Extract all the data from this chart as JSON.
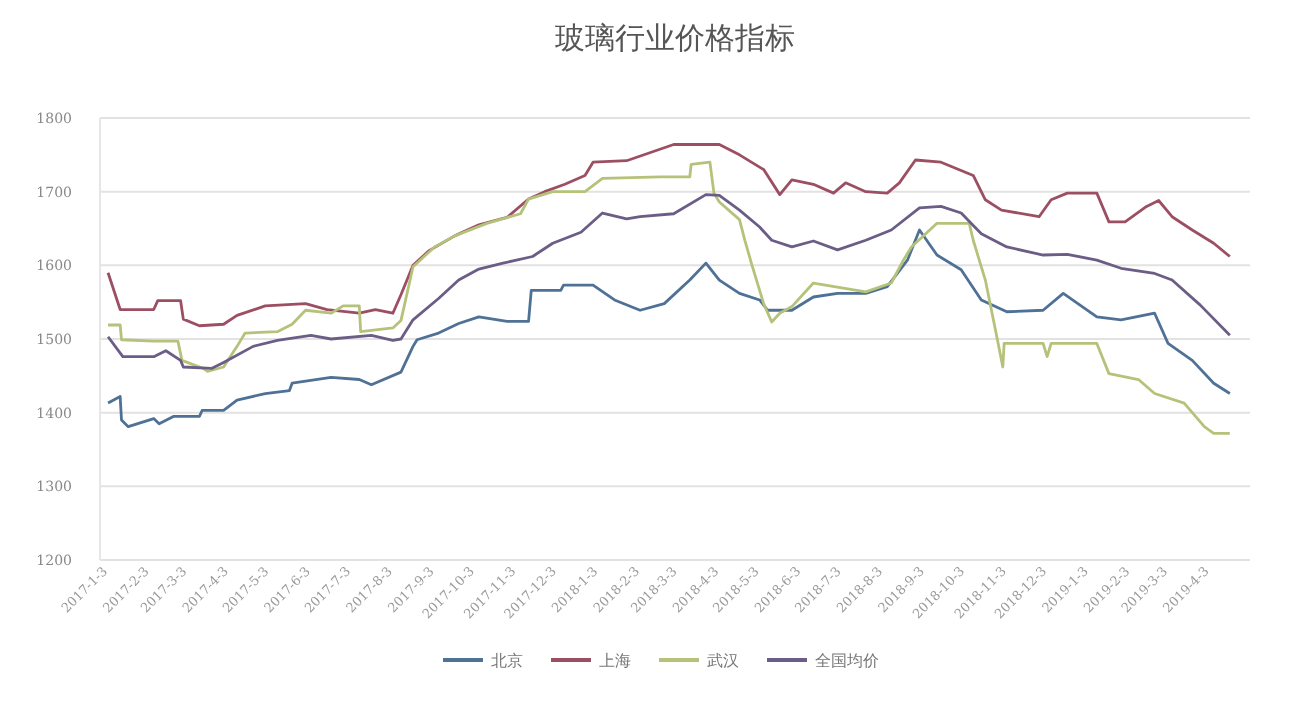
{
  "chart_data": {
    "type": "line",
    "title": "玻璃行业价格指标",
    "xlim": [
      "2016-12-28",
      "2019-05-03"
    ],
    "ylim": [
      1200,
      1800
    ],
    "yticks": [
      1200,
      1300,
      1400,
      1500,
      1600,
      1700,
      1800
    ],
    "xticks": [
      {
        "value": "2017-01-03",
        "label": "2017-1-3"
      },
      {
        "value": "2017-02-03",
        "label": "2017-2-3"
      },
      {
        "value": "2017-03-03",
        "label": "2017-3-3"
      },
      {
        "value": "2017-04-03",
        "label": "2017-4-3"
      },
      {
        "value": "2017-05-03",
        "label": "2017-5-3"
      },
      {
        "value": "2017-06-03",
        "label": "2017-6-3"
      },
      {
        "value": "2017-07-03",
        "label": "2017-7-3"
      },
      {
        "value": "2017-08-03",
        "label": "2017-8-3"
      },
      {
        "value": "2017-09-03",
        "label": "2017-9-3"
      },
      {
        "value": "2017-10-03",
        "label": "2017-10-3"
      },
      {
        "value": "2017-11-03",
        "label": "2017-11-3"
      },
      {
        "value": "2017-12-03",
        "label": "2017-12-3"
      },
      {
        "value": "2018-01-03",
        "label": "2018-1-3"
      },
      {
        "value": "2018-02-03",
        "label": "2018-2-3"
      },
      {
        "value": "2018-03-03",
        "label": "2018-3-3"
      },
      {
        "value": "2018-04-03",
        "label": "2018-4-3"
      },
      {
        "value": "2018-05-03",
        "label": "2018-5-3"
      },
      {
        "value": "2018-06-03",
        "label": "2018-6-3"
      },
      {
        "value": "2018-07-03",
        "label": "2018-7-3"
      },
      {
        "value": "2018-08-03",
        "label": "2018-8-3"
      },
      {
        "value": "2018-09-03",
        "label": "2018-9-3"
      },
      {
        "value": "2018-10-03",
        "label": "2018-10-3"
      },
      {
        "value": "2018-11-03",
        "label": "2018-11-3"
      },
      {
        "value": "2018-12-03",
        "label": "2018-12-3"
      },
      {
        "value": "2019-01-03",
        "label": "2019-1-3"
      },
      {
        "value": "2019-02-03",
        "label": "2019-2-3"
      },
      {
        "value": "2019-03-03",
        "label": "2019-3-3"
      },
      {
        "value": "2019-04-03",
        "label": "2019-4-3"
      }
    ],
    "grid": "y",
    "legend": "bottom",
    "series": [
      {
        "name": "北京",
        "color": "#4f7196",
        "x": [
          "2017-01-03",
          "2017-01-12",
          "2017-01-13",
          "2017-01-18",
          "2017-02-06",
          "2017-02-10",
          "2017-02-21",
          "2017-03-12",
          "2017-03-14",
          "2017-03-30",
          "2017-04-09",
          "2017-04-30",
          "2017-05-18",
          "2017-05-20",
          "2017-06-18",
          "2017-07-09",
          "2017-07-18",
          "2017-08-09",
          "2017-08-18",
          "2017-08-21",
          "2017-09-06",
          "2017-09-21",
          "2017-10-06",
          "2017-10-27",
          "2017-11-12",
          "2017-11-14",
          "2017-12-06",
          "2017-12-08",
          "2017-12-30",
          "2018-01-15",
          "2018-02-03",
          "2018-02-21",
          "2018-03-12",
          "2018-03-24",
          "2018-04-03",
          "2018-04-18",
          "2018-05-03",
          "2018-05-09",
          "2018-05-27",
          "2018-06-12",
          "2018-06-30",
          "2018-07-21",
          "2018-08-06",
          "2018-08-21",
          "2018-08-30",
          "2018-09-12",
          "2018-09-30",
          "2018-10-15",
          "2018-11-03",
          "2018-11-30",
          "2018-12-15",
          "2019-01-09",
          "2019-01-27",
          "2019-02-21",
          "2019-03-03",
          "2019-03-21",
          "2019-04-06",
          "2019-04-18"
        ],
        "values": [
          1413,
          1422,
          1390,
          1381,
          1392,
          1385,
          1395,
          1395,
          1403,
          1403,
          1417,
          1426,
          1430,
          1440,
          1448,
          1445,
          1438,
          1455,
          1490,
          1499,
          1508,
          1521,
          1530,
          1524,
          1524,
          1566,
          1566,
          1573,
          1573,
          1553,
          1539,
          1548,
          1580,
          1603,
          1580,
          1562,
          1553,
          1539,
          1539,
          1557,
          1562,
          1562,
          1571,
          1607,
          1648,
          1614,
          1594,
          1553,
          1537,
          1539,
          1562,
          1530,
          1526,
          1535,
          1494,
          1471,
          1440,
          1426
        ]
      },
      {
        "name": "上海",
        "color": "#9c4f63",
        "x": [
          "2017-01-03",
          "2017-01-12",
          "2017-02-06",
          "2017-02-09",
          "2017-02-26",
          "2017-02-28",
          "2017-03-12",
          "2017-03-30",
          "2017-04-09",
          "2017-04-30",
          "2017-05-30",
          "2017-06-15",
          "2017-07-09",
          "2017-07-21",
          "2017-08-03",
          "2017-08-09",
          "2017-08-18",
          "2017-08-30",
          "2017-09-18",
          "2017-10-06",
          "2017-10-27",
          "2017-11-12",
          "2017-11-24",
          "2017-12-09",
          "2017-12-24",
          "2017-12-30",
          "2018-01-24",
          "2018-02-28",
          "2018-04-03",
          "2018-04-18",
          "2018-05-06",
          "2018-05-18",
          "2018-05-27",
          "2018-06-12",
          "2018-06-27",
          "2018-07-06",
          "2018-07-21",
          "2018-08-06",
          "2018-08-15",
          "2018-08-27",
          "2018-09-15",
          "2018-10-09",
          "2018-10-18",
          "2018-10-30",
          "2018-11-27",
          "2018-12-06",
          "2018-12-18",
          "2019-01-09",
          "2019-01-18",
          "2019-01-30",
          "2019-02-15",
          "2019-02-24",
          "2019-03-06",
          "2019-03-21",
          "2019-04-06",
          "2019-04-18"
        ],
        "values": [
          1590,
          1540,
          1540,
          1552,
          1552,
          1527,
          1518,
          1520,
          1532,
          1545,
          1548,
          1540,
          1535,
          1540,
          1535,
          1560,
          1600,
          1620,
          1640,
          1655,
          1665,
          1690,
          1700,
          1710,
          1722,
          1740,
          1742,
          1764,
          1764,
          1750,
          1730,
          1696,
          1716,
          1710,
          1698,
          1712,
          1700,
          1698,
          1712,
          1743,
          1740,
          1722,
          1689,
          1675,
          1666,
          1689,
          1698,
          1698,
          1659,
          1659,
          1680,
          1688,
          1666,
          1648,
          1630,
          1612
        ]
      },
      {
        "name": "武汉",
        "color": "#b5c27a",
        "x": [
          "2017-01-03",
          "2017-01-12",
          "2017-01-13",
          "2017-02-06",
          "2017-02-24",
          "2017-02-27",
          "2017-03-15",
          "2017-03-18",
          "2017-03-30",
          "2017-04-09",
          "2017-04-15",
          "2017-05-09",
          "2017-05-20",
          "2017-05-30",
          "2017-06-18",
          "2017-06-27",
          "2017-07-09",
          "2017-07-10",
          "2017-08-03",
          "2017-08-09",
          "2017-08-18",
          "2017-09-03",
          "2017-09-18",
          "2017-10-12",
          "2017-11-06",
          "2017-11-12",
          "2017-11-30",
          "2017-12-24",
          "2018-01-06",
          "2018-02-18",
          "2018-03-12",
          "2018-03-13",
          "2018-03-27",
          "2018-03-30",
          "2018-04-03",
          "2018-04-18",
          "2018-04-22",
          "2018-04-27",
          "2018-05-06",
          "2018-05-12",
          "2018-05-18",
          "2018-05-27",
          "2018-06-12",
          "2018-07-21",
          "2018-08-09",
          "2018-08-18",
          "2018-08-24",
          "2018-09-12",
          "2018-10-06",
          "2018-10-09",
          "2018-10-18",
          "2018-10-27",
          "2018-10-31",
          "2018-11-01",
          "2018-11-30",
          "2018-12-03",
          "2018-12-06",
          "2019-01-09",
          "2019-01-18",
          "2019-02-09",
          "2019-02-21",
          "2019-03-15",
          "2019-03-30",
          "2019-04-06",
          "2019-04-18"
        ],
        "values": [
          1519,
          1519,
          1499,
          1497,
          1497,
          1471,
          1460,
          1456,
          1462,
          1490,
          1508,
          1510,
          1520,
          1539,
          1535,
          1545,
          1545,
          1510,
          1515,
          1525,
          1598,
          1625,
          1640,
          1657,
          1670,
          1690,
          1700,
          1700,
          1718,
          1720,
          1720,
          1737,
          1740,
          1698,
          1686,
          1662,
          1634,
          1602,
          1548,
          1523,
          1535,
          1544,
          1576,
          1564,
          1576,
          1607,
          1625,
          1657,
          1657,
          1634,
          1580,
          1499,
          1462,
          1494,
          1494,
          1476,
          1494,
          1494,
          1453,
          1445,
          1426,
          1413,
          1381,
          1372,
          1372
        ]
      },
      {
        "name": "全国均价",
        "color": "#6b5d86",
        "x": [
          "2017-01-03",
          "2017-01-14",
          "2017-02-06",
          "2017-02-15",
          "2017-02-26",
          "2017-02-28",
          "2017-03-21",
          "2017-03-30",
          "2017-04-21",
          "2017-05-09",
          "2017-06-03",
          "2017-06-18",
          "2017-07-18",
          "2017-08-03",
          "2017-08-09",
          "2017-08-18",
          "2017-09-06",
          "2017-09-21",
          "2017-10-06",
          "2017-10-24",
          "2017-11-15",
          "2017-11-30",
          "2017-12-21",
          "2018-01-06",
          "2018-01-24",
          "2018-02-03",
          "2018-02-28",
          "2018-03-24",
          "2018-04-03",
          "2018-04-18",
          "2018-05-03",
          "2018-05-12",
          "2018-05-27",
          "2018-06-12",
          "2018-06-30",
          "2018-07-21",
          "2018-08-09",
          "2018-08-30",
          "2018-09-15",
          "2018-09-30",
          "2018-10-15",
          "2018-11-03",
          "2018-11-30",
          "2018-12-18",
          "2019-01-09",
          "2019-01-27",
          "2019-02-21",
          "2019-03-06",
          "2019-03-27",
          "2019-04-18"
        ],
        "values": [
          1503,
          1476,
          1476,
          1484,
          1471,
          1462,
          1460,
          1468,
          1490,
          1498,
          1505,
          1500,
          1505,
          1498,
          1500,
          1526,
          1555,
          1580,
          1595,
          1603,
          1612,
          1630,
          1645,
          1671,
          1663,
          1666,
          1670,
          1696,
          1695,
          1675,
          1652,
          1634,
          1625,
          1633,
          1621,
          1634,
          1648,
          1678,
          1680,
          1671,
          1643,
          1625,
          1614,
          1615,
          1607,
          1596,
          1589,
          1580,
          1546,
          1505
        ]
      }
    ]
  }
}
